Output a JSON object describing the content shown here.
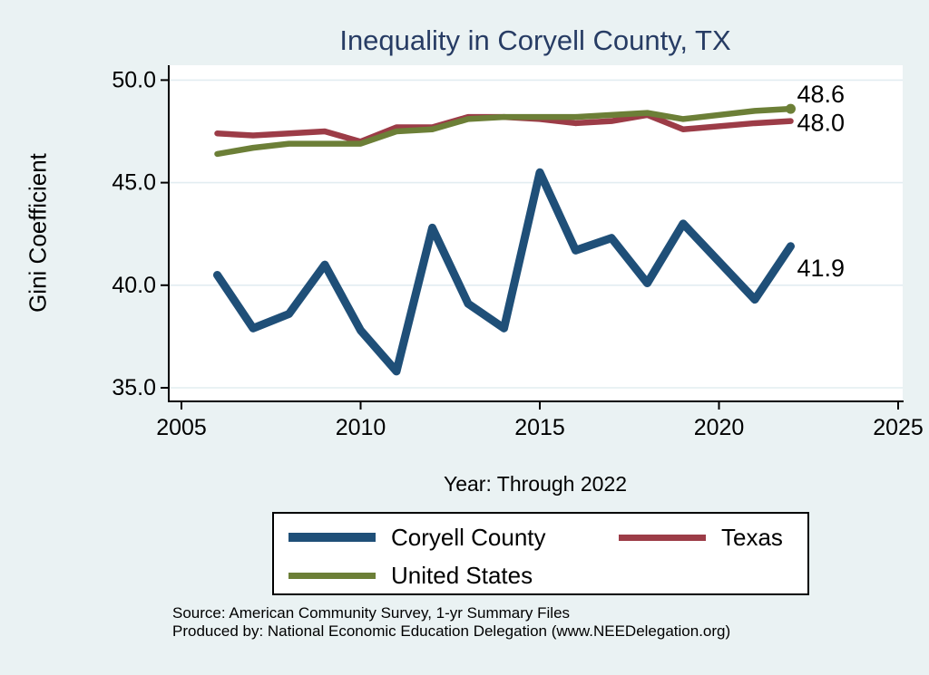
{
  "title": "Inequality in Coryell County, TX",
  "y_axis": {
    "label": "Gini Coefficient",
    "ticks": [
      50.0,
      45.0,
      40.0,
      35.0
    ],
    "tick_labels": [
      "50.0",
      "45.0",
      "40.0",
      "35.0"
    ]
  },
  "x_axis": {
    "label": "Year: Through 2022",
    "ticks": [
      2005,
      2010,
      2015,
      2020,
      2025
    ],
    "tick_labels": [
      "2005",
      "2010",
      "2015",
      "2020",
      "2025"
    ]
  },
  "legend": {
    "items": [
      {
        "label": "Coryell County",
        "color": "#1f4f78"
      },
      {
        "label": "Texas",
        "color": "#9c3c47"
      },
      {
        "label": "United States",
        "color": "#6c7f37"
      }
    ]
  },
  "end_labels": [
    {
      "text": "48.6",
      "series": "United States"
    },
    {
      "text": "48.0",
      "series": "Texas"
    },
    {
      "text": "41.9",
      "series": "Coryell County"
    }
  ],
  "source": {
    "line1": "Source: American Community Survey, 1-yr Summary Files",
    "line2": "Produced by: National Economic Education Delegation (www.NEEDelegation.org)"
  },
  "colors": {
    "background": "#eaf2f3",
    "plot_background": "#ffffff",
    "gridline": "#e2edf1",
    "axis": "#000000",
    "title": "#273c64",
    "coryell": "#1f4f78",
    "texas": "#9c3c47",
    "united_states": "#6c7f37"
  },
  "chart_data": {
    "type": "line",
    "title": "Inequality in Coryell County, TX",
    "xlabel": "Year: Through 2022",
    "ylabel": "Gini Coefficient",
    "x": [
      2006,
      2007,
      2008,
      2009,
      2010,
      2011,
      2012,
      2013,
      2014,
      2015,
      2016,
      2017,
      2018,
      2019,
      2021,
      2022
    ],
    "series": [
      {
        "name": "Coryell County",
        "color": "#1f4f78",
        "line_width": 9,
        "values": [
          40.5,
          37.9,
          38.6,
          41.0,
          37.8,
          35.8,
          42.8,
          39.1,
          37.9,
          45.5,
          41.7,
          42.3,
          40.1,
          43.0,
          39.3,
          41.9
        ]
      },
      {
        "name": "Texas",
        "color": "#9c3c47",
        "line_width": 6.5,
        "values": [
          47.4,
          47.3,
          47.4,
          47.5,
          47.0,
          47.7,
          47.7,
          48.2,
          48.2,
          48.1,
          47.9,
          48.0,
          48.3,
          47.6,
          47.9,
          48.0
        ]
      },
      {
        "name": "United States",
        "color": "#6c7f37",
        "line_width": 6.5,
        "values": [
          46.4,
          46.7,
          46.9,
          46.9,
          46.9,
          47.5,
          47.6,
          48.1,
          48.2,
          48.2,
          48.2,
          48.3,
          48.4,
          48.1,
          48.5,
          48.6
        ]
      }
    ],
    "xlim": [
      2004.6,
      2025.1
    ],
    "ylim": [
      34.3,
      50.7
    ],
    "grid": "horizontal",
    "legend_position": "bottom"
  }
}
